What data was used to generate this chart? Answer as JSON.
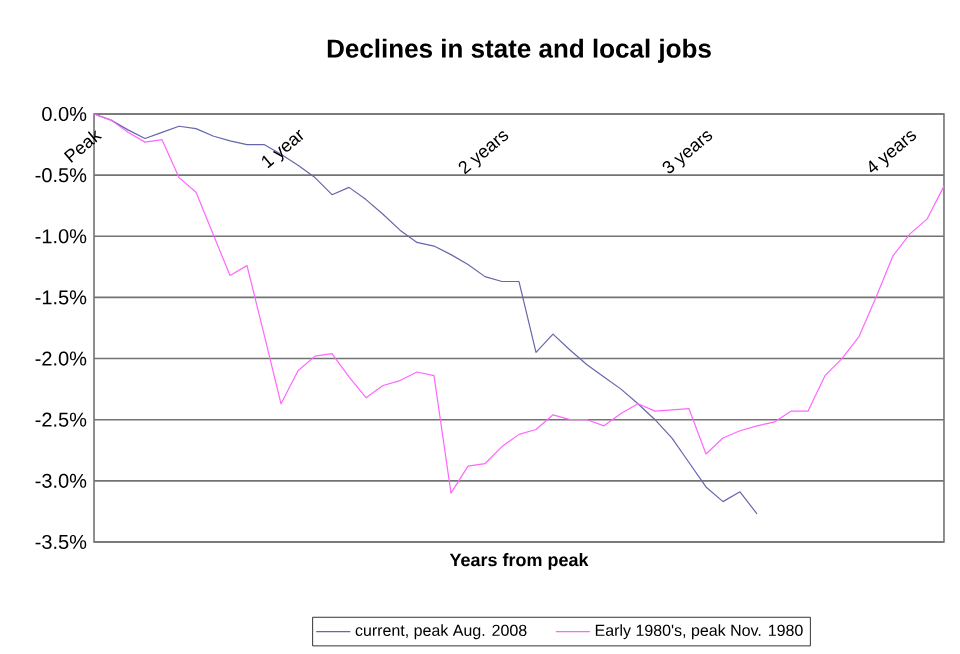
{
  "chart_data": {
    "type": "line",
    "title": "Declines in state and local jobs",
    "xlabel": "Years from peak",
    "categories": [
      null,
      null,
      null,
      null,
      null,
      null,
      null,
      null,
      null,
      null,
      null,
      null,
      null,
      null,
      null,
      null,
      null,
      null,
      null,
      null,
      null,
      null,
      null,
      null,
      null,
      null,
      null,
      null,
      null,
      null,
      null,
      null,
      null,
      null,
      null,
      null,
      null,
      null,
      null,
      null,
      null,
      null,
      null,
      null,
      null,
      null,
      null,
      null,
      null,
      null,
      null
    ],
    "series": [
      {
        "name": "current, peak Aug. 2008",
        "color": "#6666aa",
        "values": [
          0,
          -0.05,
          -0.13,
          -0.2,
          -0.15,
          -0.1,
          -0.12,
          -0.18,
          -0.22,
          -0.25,
          -0.25,
          -0.33,
          -0.42,
          -0.52,
          -0.66,
          -0.6,
          -0.7,
          -0.82,
          -0.95,
          -1.05,
          -1.08,
          -1.15,
          -1.23,
          -1.33,
          -1.37,
          -1.37,
          -1.95,
          -1.8,
          -1.93,
          -2.05,
          -2.15,
          -2.25,
          -2.37,
          -2.5,
          -2.65,
          -2.85,
          -3.05,
          -3.17,
          -3.09,
          -3.27,
          null,
          null,
          null,
          null,
          null,
          null,
          null,
          null,
          null,
          null,
          null
        ]
      },
      {
        "name": "Early 1980's, peak Nov. 1980",
        "color": "#ff66ff",
        "values": [
          0,
          -0.05,
          -0.15,
          -0.23,
          -0.21,
          -0.52,
          -0.64,
          -0.98,
          -1.32,
          -1.24,
          -1.8,
          -2.37,
          -2.1,
          -1.98,
          -1.96,
          -2.15,
          -2.32,
          -2.22,
          -2.18,
          -2.11,
          -2.14,
          -3.1,
          -2.88,
          -2.86,
          -2.72,
          -2.62,
          -2.58,
          -2.46,
          -2.5,
          -2.5,
          -2.55,
          -2.45,
          -2.37,
          -2.43,
          -2.42,
          -2.41,
          -2.78,
          -2.65,
          -2.59,
          -2.55,
          -2.52,
          -2.43,
          -2.43,
          -2.14,
          -2.0,
          -1.82,
          -1.5,
          -1.16,
          -0.98,
          -0.86,
          -0.59
        ]
      }
    ],
    "ylim": [
      -3.5,
      0
    ],
    "yticks": [
      {
        "value": 0,
        "label": "0.0%"
      },
      {
        "value": -0.5,
        "label": "-0.5%"
      },
      {
        "value": -1,
        "label": "-1.0%"
      },
      {
        "value": -1.5,
        "label": "-1.5%"
      },
      {
        "value": -2,
        "label": "-2.0%"
      },
      {
        "value": -2.5,
        "label": "-2.5%"
      },
      {
        "value": -3,
        "label": "-3.0%"
      },
      {
        "value": -3.5,
        "label": "-3.5%"
      }
    ],
    "annotations": [
      "Peak",
      "1 year",
      "2 years",
      "3 years",
      "4 years"
    ],
    "grid": "y",
    "legend": "bottom",
    "tick_labels": "y",
    "marker": "none",
    "line_style": "solid"
  }
}
